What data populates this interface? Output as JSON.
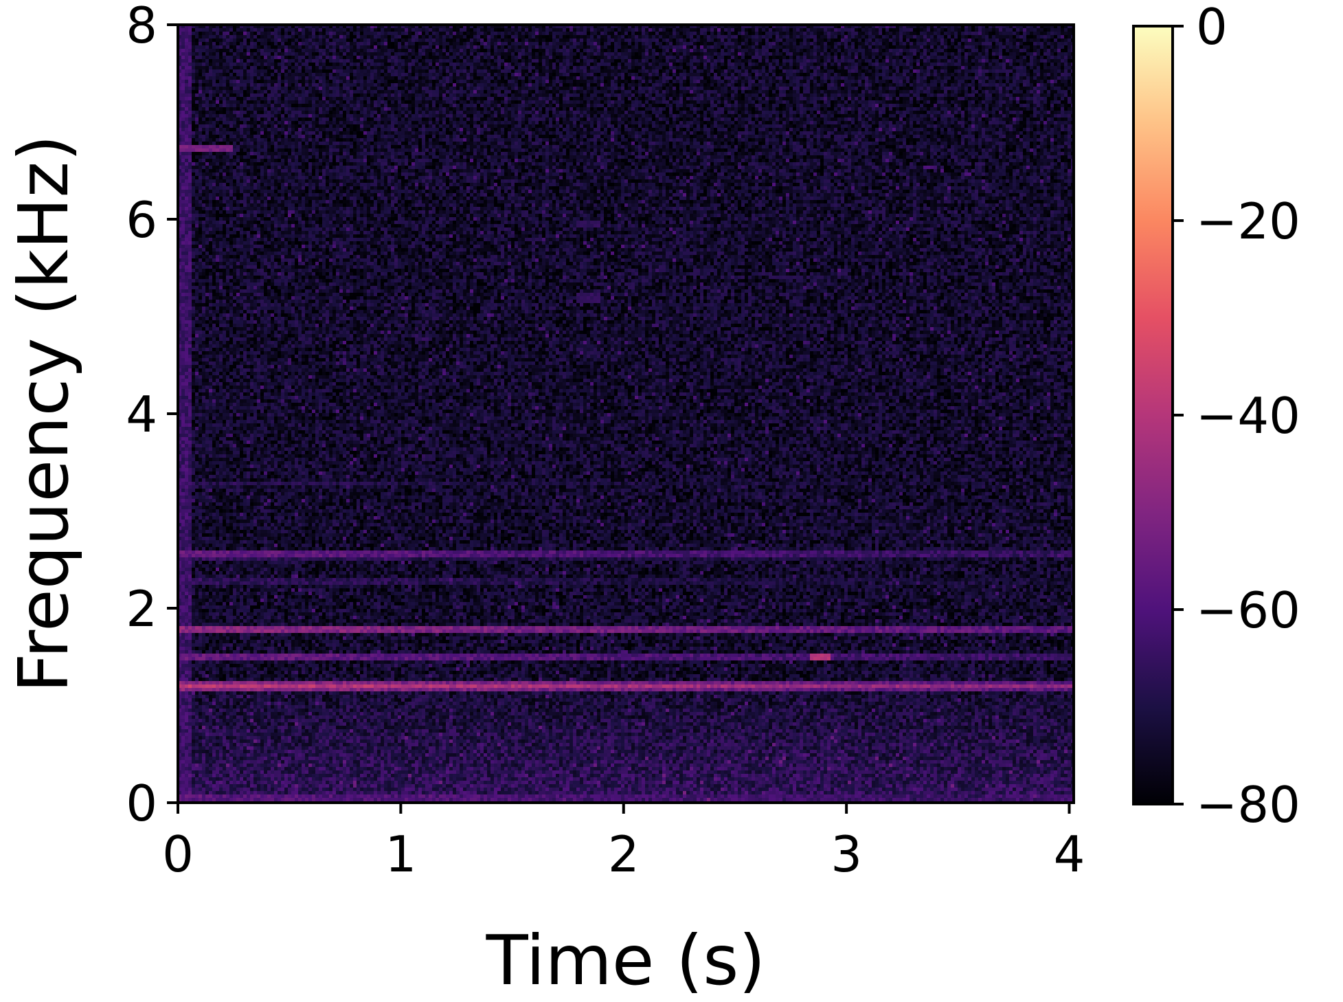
{
  "chart_data": {
    "type": "heatmap",
    "subtype": "spectrogram",
    "title": "",
    "xlabel": "Time (s)",
    "ylabel": "Frequency (kHz)",
    "xlim": [
      0,
      4.02
    ],
    "ylim": [
      0,
      8
    ],
    "x_ticks": [
      0,
      1,
      2,
      3,
      4
    ],
    "x_tick_labels": [
      "0",
      "1",
      "2",
      "3",
      "4"
    ],
    "y_ticks": [
      0,
      2,
      4,
      6,
      8
    ],
    "y_tick_labels": [
      "0",
      "2",
      "4",
      "6",
      "8"
    ],
    "colormap": "magma",
    "colormap_stops": [
      "#000004",
      "#1c1044",
      "#4f127b",
      "#812581",
      "#b5367a",
      "#e55064",
      "#fb8761",
      "#fec287",
      "#fcfdbf"
    ],
    "colorbar": {
      "range": [
        -80,
        0
      ],
      "ticks": [
        0,
        -20,
        -40,
        -60,
        -80
      ],
      "tick_labels": [
        "0",
        "−20",
        "−40",
        "−60",
        "−80"
      ]
    },
    "grid": false,
    "background_level_db": -76,
    "harmonic_bands": [
      {
        "frequency_khz": 0.05,
        "level_db": -58
      },
      {
        "frequency_khz": 1.2,
        "level_db": -38
      },
      {
        "frequency_khz": 1.5,
        "level_db": -55
      },
      {
        "frequency_khz": 1.78,
        "level_db": -48
      },
      {
        "frequency_khz": 2.28,
        "level_db": -66
      },
      {
        "frequency_khz": 2.55,
        "level_db": -56
      },
      {
        "frequency_khz": 3.28,
        "level_db": -68
      }
    ],
    "onset_feature": {
      "time_s": [
        0,
        0.24
      ],
      "frequency_khz": 6.72,
      "level_db": -52
    },
    "hot_spots": [
      {
        "time_s": 2.88,
        "frequency_khz": 1.5,
        "level_db": -40
      },
      {
        "time_s": 1.84,
        "frequency_khz": 5.95,
        "level_db": -66
      },
      {
        "time_s": 1.84,
        "frequency_khz": 5.2,
        "level_db": -66
      }
    ]
  }
}
